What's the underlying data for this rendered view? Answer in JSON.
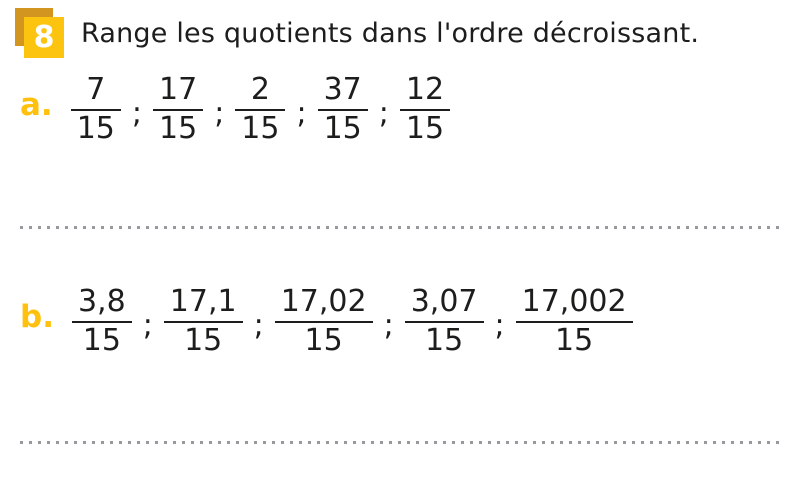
{
  "exercise": {
    "number": "8",
    "title": "Range les quotients dans l'ordre décroissant."
  },
  "separator": ";",
  "items": [
    {
      "label": "a.",
      "fractions": [
        {
          "numerator": "7",
          "denominator": "15"
        },
        {
          "numerator": "17",
          "denominator": "15"
        },
        {
          "numerator": "2",
          "denominator": "15"
        },
        {
          "numerator": "37",
          "denominator": "15"
        },
        {
          "numerator": "12",
          "denominator": "15"
        }
      ]
    },
    {
      "label": "b.",
      "fractions": [
        {
          "numerator": "3,8",
          "denominator": "15"
        },
        {
          "numerator": "17,1",
          "denominator": "15"
        },
        {
          "numerator": "17,02",
          "denominator": "15"
        },
        {
          "numerator": "3,07",
          "denominator": "15"
        },
        {
          "numerator": "17,002",
          "denominator": "15"
        }
      ]
    }
  ],
  "colors": {
    "badge_front": "#FCC40F",
    "badge_back": "#D2951F",
    "badge_number": "#FFFFFF",
    "item_label": "#FFC10E",
    "text": "#1D1D1B",
    "fraction_bar": "#1D1D1B",
    "dots": "#97999D"
  }
}
